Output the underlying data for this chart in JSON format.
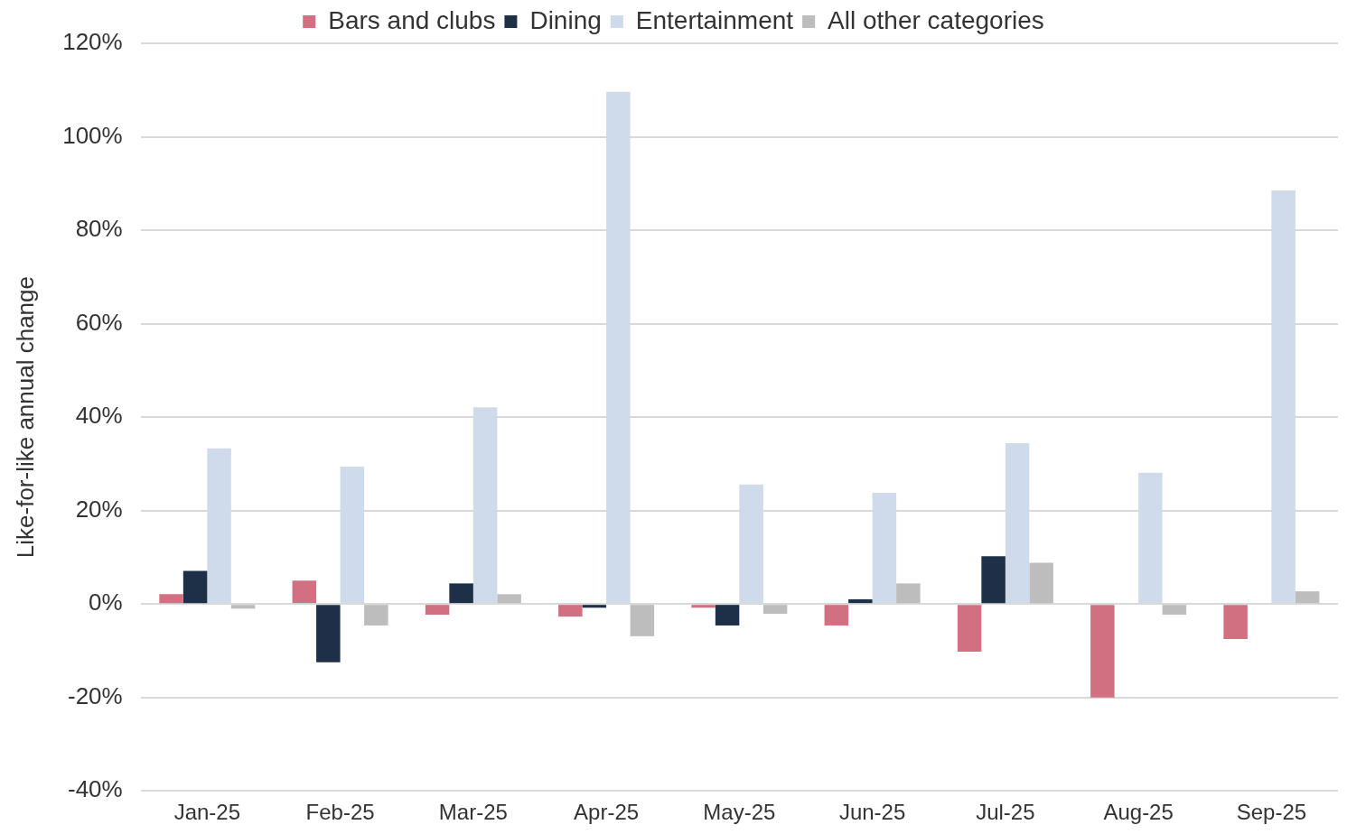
{
  "chart_data": {
    "type": "bar",
    "ylabel": "Like-for-like annual change",
    "categories": [
      "Jan-25",
      "Feb-25",
      "Mar-25",
      "Apr-25",
      "May-25",
      "Jun-25",
      "Jul-25",
      "Aug-25",
      "Sep-25"
    ],
    "series": [
      {
        "name": "Bars and clubs",
        "color": "#d07080",
        "values": [
          2.1,
          5.0,
          -2.3,
          -2.7,
          -0.8,
          -4.6,
          -10.2,
          -20.0,
          -7.5
        ]
      },
      {
        "name": "Dining",
        "color": "#1e3048",
        "values": [
          7.1,
          -12.5,
          4.4,
          -0.8,
          -4.6,
          1.0,
          10.2,
          0,
          0
        ]
      },
      {
        "name": "Entertainment",
        "color": "#cfdbea",
        "values": [
          33.3,
          29.4,
          42.1,
          109.6,
          25.6,
          23.8,
          34.4,
          28.1,
          88.5
        ]
      },
      {
        "name": "All other categories",
        "color": "#bdbdbd",
        "values": [
          -1.0,
          -4.6,
          2.1,
          -6.9,
          -2.1,
          4.4,
          8.8,
          -2.3,
          2.7
        ]
      }
    ],
    "ylim": [
      -40,
      120
    ],
    "yticks": [
      {
        "value": -40,
        "label": "-40%"
      },
      {
        "value": -20,
        "label": "-20%"
      },
      {
        "value": 0,
        "label": "0%"
      },
      {
        "value": 20,
        "label": "20%"
      },
      {
        "value": 40,
        "label": "40%"
      },
      {
        "value": 60,
        "label": "60%"
      },
      {
        "value": 80,
        "label": "80%"
      },
      {
        "value": 100,
        "label": "100%"
      },
      {
        "value": 120,
        "label": "120%"
      }
    ],
    "grid": "y",
    "legend": "top"
  }
}
